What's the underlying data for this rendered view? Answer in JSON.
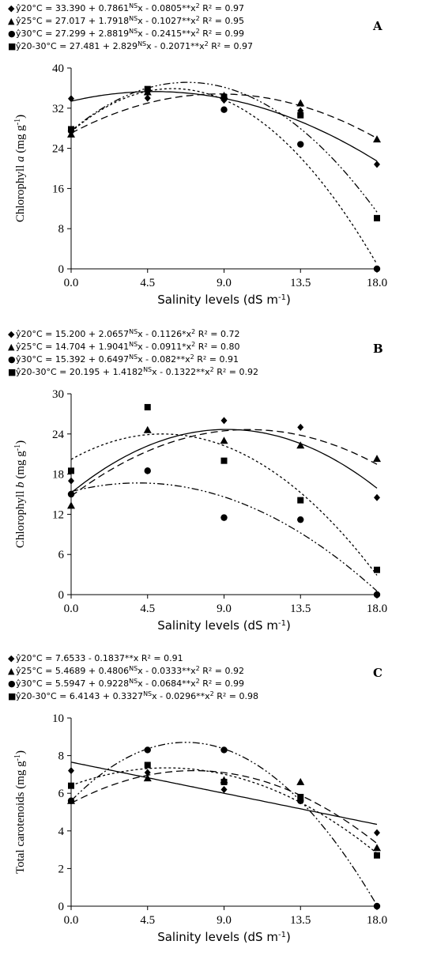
{
  "chart_data": [
    {
      "type": "scatter",
      "panel": "A",
      "ylabel_main": "Chlorophyll ",
      "ylabel_italic": "a",
      "ylabel_unit": " (mg g",
      "ylabel_sup": "-1",
      "ylabel_end": ")",
      "xlabel_main": "Salinity levels (dS m",
      "xlabel_sup": "-1",
      "xlabel_end": ")",
      "x_ticks": [
        "0.0",
        "4.5",
        "9.0",
        "13.5",
        "18.0"
      ],
      "y_ticks": [
        "0",
        "8",
        "16",
        "24",
        "32",
        "40"
      ],
      "ylim": [
        0,
        40
      ],
      "xlim": [
        0,
        18
      ],
      "x": [
        0,
        4.5,
        9,
        13.5,
        18
      ],
      "series": [
        {
          "marker": "diamond",
          "dash": "",
          "coef": [
            33.39,
            0.7861,
            -0.0805
          ],
          "values": [
            33.9,
            34.0,
            33.6,
            31.5,
            20.8
          ],
          "eq_lead": "ŷ20°C = 33.390  + 0.7861",
          "eq_sup1": "NS",
          "eq_mid": "x  - 0.0805**x",
          "eq_sup2": "2",
          "eq_r2": "  R² = 0.97"
        },
        {
          "marker": "triangle",
          "dash": "9,5",
          "coef": [
            27.017,
            1.7918,
            -0.1027
          ],
          "values": [
            26.8,
            35.2,
            34.5,
            33.0,
            25.8
          ],
          "eq_lead": "ŷ25°C = 27.017  + 1.7918",
          "eq_sup1": "NS",
          "eq_mid": "x  - 0.1027**x",
          "eq_sup2": "2",
          "eq_r2": "  R² = 0.95"
        },
        {
          "marker": "circle",
          "dash": "3,3",
          "coef": [
            27.299,
            2.8819,
            -0.2415
          ],
          "values": [
            27.5,
            35.6,
            31.7,
            24.8,
            0
          ],
          "eq_lead": "ŷ30°C = 27.299  + 2.8819",
          "eq_sup1": "NS",
          "eq_mid": "x  - 0.2415**x",
          "eq_sup2": "2",
          "eq_r2": "  R² = 0.99"
        },
        {
          "marker": "square",
          "dash": "9,3,2,3,2,3",
          "coef": [
            27.481,
            2.829,
            -0.2071
          ],
          "values": [
            27.8,
            35.8,
            34.2,
            30.6,
            10.1
          ],
          "eq_lead": "ŷ20-30°C = 27.481  + 2.829",
          "eq_sup1": "NS",
          "eq_mid": "x  - 0.2071**x",
          "eq_sup2": "2",
          "eq_r2": "  R² = 0.97"
        }
      ]
    },
    {
      "type": "scatter",
      "panel": "B",
      "ylabel_main": "Chlorophyll ",
      "ylabel_italic": "b",
      "ylabel_unit": " (mg g",
      "ylabel_sup": "-1",
      "ylabel_end": ")",
      "xlabel_main": "Salinity levels (dS m",
      "xlabel_sup": "-1",
      "xlabel_end": ")",
      "x_ticks": [
        "0.0",
        "4.5",
        "9.0",
        "13.5",
        "18.0"
      ],
      "y_ticks": [
        "0",
        "6",
        "12",
        "18",
        "24",
        "30"
      ],
      "ylim": [
        0,
        30
      ],
      "xlim": [
        0,
        18
      ],
      "x": [
        0,
        4.5,
        9,
        13.5,
        18
      ],
      "series": [
        {
          "marker": "diamond",
          "dash": "",
          "coef": [
            15.2,
            2.0657,
            -0.1126
          ],
          "values": [
            17.0,
            18.5,
            26.0,
            25.0,
            14.5
          ],
          "eq_lead": "ŷ20°C = 15.200  + 2.0657",
          "eq_sup1": "NS",
          "eq_mid": "x  - 0.1126*x",
          "eq_sup2": "2",
          "eq_r2": "  R² = 0.72"
        },
        {
          "marker": "triangle",
          "dash": "9,5",
          "coef": [
            14.704,
            1.9041,
            -0.0911
          ],
          "values": [
            13.3,
            24.6,
            23.0,
            22.3,
            20.3
          ],
          "eq_lead": "ŷ25°C = 14.704  + 1.9041",
          "eq_sup1": "NS",
          "eq_mid": "x  - 0.0911*x",
          "eq_sup2": "2",
          "eq_r2": "  R² = 0.80"
        },
        {
          "marker": "circle",
          "dash": "9,3,2,3,2,3",
          "coef": [
            15.392,
            0.6497,
            -0.082
          ],
          "values": [
            15.0,
            18.5,
            11.5,
            11.2,
            0
          ],
          "eq_lead": "ŷ30°C = 15.392  + 0.6497",
          "eq_sup1": "NS",
          "eq_mid": "x  - 0.082**x",
          "eq_sup2": "2",
          "eq_r2": "  R² = 0.91"
        },
        {
          "marker": "square",
          "dash": "3,3",
          "coef": [
            20.195,
            1.4182,
            -0.1322
          ],
          "values": [
            18.5,
            28.0,
            20.0,
            14.1,
            3.7
          ],
          "eq_lead": "ŷ20-30°C = 20.195  + 1.4182",
          "eq_sup1": "NS",
          "eq_mid": "x  - 0.1322**x",
          "eq_sup2": "2",
          "eq_r2": "  R² = 0.92"
        }
      ]
    },
    {
      "type": "scatter",
      "panel": "C",
      "ylabel_main": "Total carotenoids",
      "ylabel_italic": "",
      "ylabel_unit": " (mg g",
      "ylabel_sup": "-1",
      "ylabel_end": ")",
      "xlabel_main": "Salinity levels (dS m",
      "xlabel_sup": "-1",
      "xlabel_end": ")",
      "x_ticks": [
        "0.0",
        "4.5",
        "9.0",
        "13.5",
        "18.0"
      ],
      "y_ticks": [
        "0",
        "2",
        "4",
        "6",
        "8",
        "10"
      ],
      "ylim": [
        0,
        10
      ],
      "xlim": [
        0,
        18
      ],
      "x": [
        0,
        4.5,
        9,
        13.5,
        18
      ],
      "series": [
        {
          "marker": "diamond",
          "dash": "",
          "coef": [
            7.6533,
            -0.1837,
            0
          ],
          "values": [
            7.2,
            7.1,
            6.2,
            5.6,
            3.9
          ],
          "eq_lead": "ŷ20°C = 7.6533  - 0.1837**x",
          "eq_sup1": "",
          "eq_mid": "",
          "eq_sup2": "",
          "eq_r2": "  R² = 0.91"
        },
        {
          "marker": "triangle",
          "dash": "9,5",
          "coef": [
            5.4689,
            0.4806,
            -0.0333
          ],
          "values": [
            5.6,
            6.8,
            6.7,
            6.6,
            3.1
          ],
          "eq_lead": "ŷ25°C = 5.4689  + 0.4806",
          "eq_sup1": "NS",
          "eq_mid": "x  - 0.0333**x",
          "eq_sup2": "2",
          "eq_r2": "  R² = 0.92"
        },
        {
          "marker": "circle",
          "dash": "9,3,2,3,2,3",
          "coef": [
            5.5947,
            0.9228,
            -0.0684
          ],
          "values": [
            5.6,
            8.3,
            8.3,
            5.6,
            0
          ],
          "eq_lead": "ŷ30°C = 5.5947  + 0.9228",
          "eq_sup1": "NS",
          "eq_mid": "x  - 0.0684**x",
          "eq_sup2": "2",
          "eq_r2": "  R² = 0.99"
        },
        {
          "marker": "square",
          "dash": "3,3",
          "coef": [
            6.4143,
            0.3327,
            -0.0296
          ],
          "values": [
            6.4,
            7.5,
            6.6,
            5.8,
            2.7
          ],
          "eq_lead": "ŷ20-30°C = 6.4143  + 0.3327",
          "eq_sup1": "NS",
          "eq_mid": "x  - 0.0296**x",
          "eq_sup2": "2",
          "eq_r2": "  R² = 0.98"
        }
      ]
    }
  ]
}
